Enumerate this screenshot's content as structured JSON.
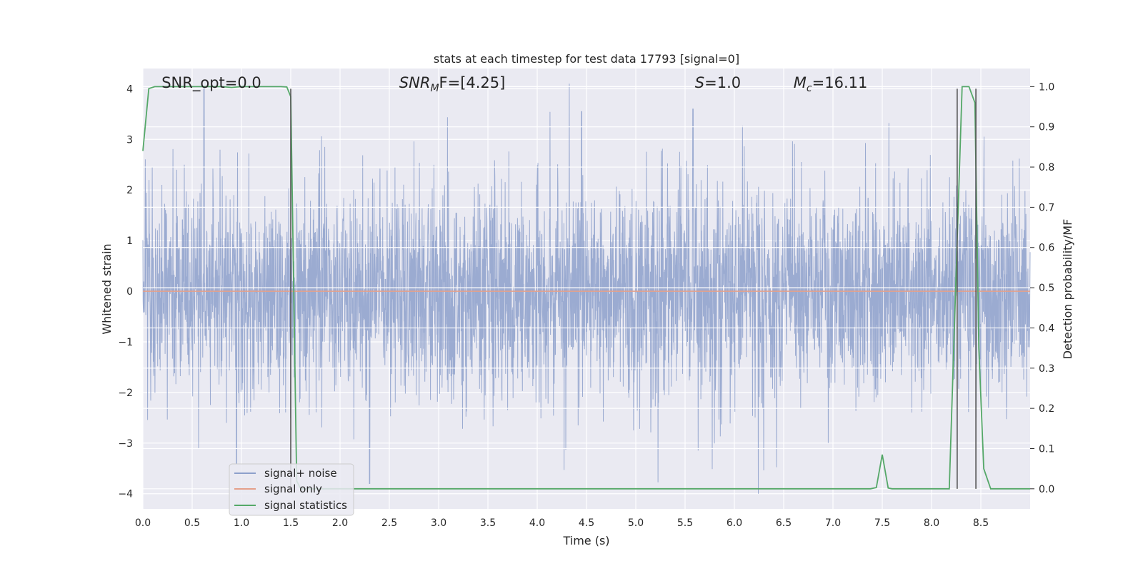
{
  "chart_data": {
    "type": "line",
    "title": "stats at each timestep for test data 17793 [signal=0]",
    "xlabel": "Time (s)",
    "ylabel": "Whitened strain",
    "ylabel_right": "Detection probability/MF",
    "xlim": [
      0,
      9.0
    ],
    "ylim": [
      -4.3,
      4.4
    ],
    "ylim_right": [
      -0.05,
      1.045
    ],
    "x_ticks": [
      "0.0",
      "0.5",
      "1.0",
      "1.5",
      "2.0",
      "2.5",
      "3.0",
      "3.5",
      "4.0",
      "4.5",
      "5.0",
      "5.5",
      "6.0",
      "6.5",
      "7.0",
      "7.5",
      "8.0",
      "8.5"
    ],
    "y_ticks": [
      "−4",
      "−3",
      "−2",
      "−1",
      "0",
      "1",
      "2",
      "3",
      "4"
    ],
    "y_ticks_right": [
      "0.0",
      "0.1",
      "0.2",
      "0.3",
      "0.4",
      "0.5",
      "0.6",
      "0.7",
      "0.8",
      "0.9",
      "1.0"
    ],
    "grid": true,
    "legend_position": "lower-left",
    "annotations": [
      {
        "text": "SNR_opt=0.0",
        "x": 0.19,
        "y": 4.05
      },
      {
        "base": "SNR",
        "sub": "M",
        "rest": "F=[4.25]",
        "x": 2.6,
        "y": 4.05
      },
      {
        "base": "S",
        "sub": "",
        "rest": "=1.0",
        "x": 5.6,
        "y": 4.05
      },
      {
        "base": "M",
        "sub": "c",
        "rest": "=16.11",
        "x": 6.6,
        "y": 4.05
      }
    ],
    "vertical_lines": [
      1.5,
      8.26,
      8.45
    ],
    "series": [
      {
        "name": "signal+ noise",
        "color": "#8da0cb",
        "noise_sigma": 1.0,
        "duration_s": 9.0,
        "note_peaks": [
          {
            "x": 0.62,
            "y": 4.0
          },
          {
            "x": 0.95,
            "y": -3.4
          },
          {
            "x": 2.3,
            "y": -3.8
          },
          {
            "x": 5.58,
            "y": 3.6
          },
          {
            "x": 4.45,
            "y": 3.55
          }
        ]
      },
      {
        "name": "signal only",
        "color": "#e5a08a",
        "x": [
          0,
          9.0
        ],
        "y": [
          0,
          0
        ]
      },
      {
        "name": "signal statistics",
        "color": "#55a868",
        "axis": "right",
        "x": [
          0.0,
          0.06,
          0.12,
          0.5,
          0.8,
          0.9,
          1.0,
          1.2,
          1.4,
          1.46,
          1.5,
          1.56,
          1.6,
          2.0,
          3.0,
          4.0,
          5.0,
          6.0,
          7.0,
          7.3,
          7.38,
          7.44,
          7.5,
          7.56,
          7.6,
          8.0,
          8.18,
          8.26,
          8.31,
          8.38,
          8.44,
          8.48,
          8.53,
          8.6,
          9.0
        ],
        "y": [
          0.84,
          0.995,
          1.0,
          1.0,
          1.0,
          0.998,
          1.0,
          1.0,
          1.0,
          0.999,
          0.975,
          0.02,
          0.0,
          0.0,
          0.0,
          0.0,
          0.0,
          0.0,
          0.0,
          0.0,
          0.0,
          0.003,
          0.085,
          0.002,
          0.0,
          0.0,
          0.0,
          0.62,
          1.0,
          1.0,
          0.96,
          0.35,
          0.05,
          0.0,
          0.0
        ]
      }
    ]
  }
}
